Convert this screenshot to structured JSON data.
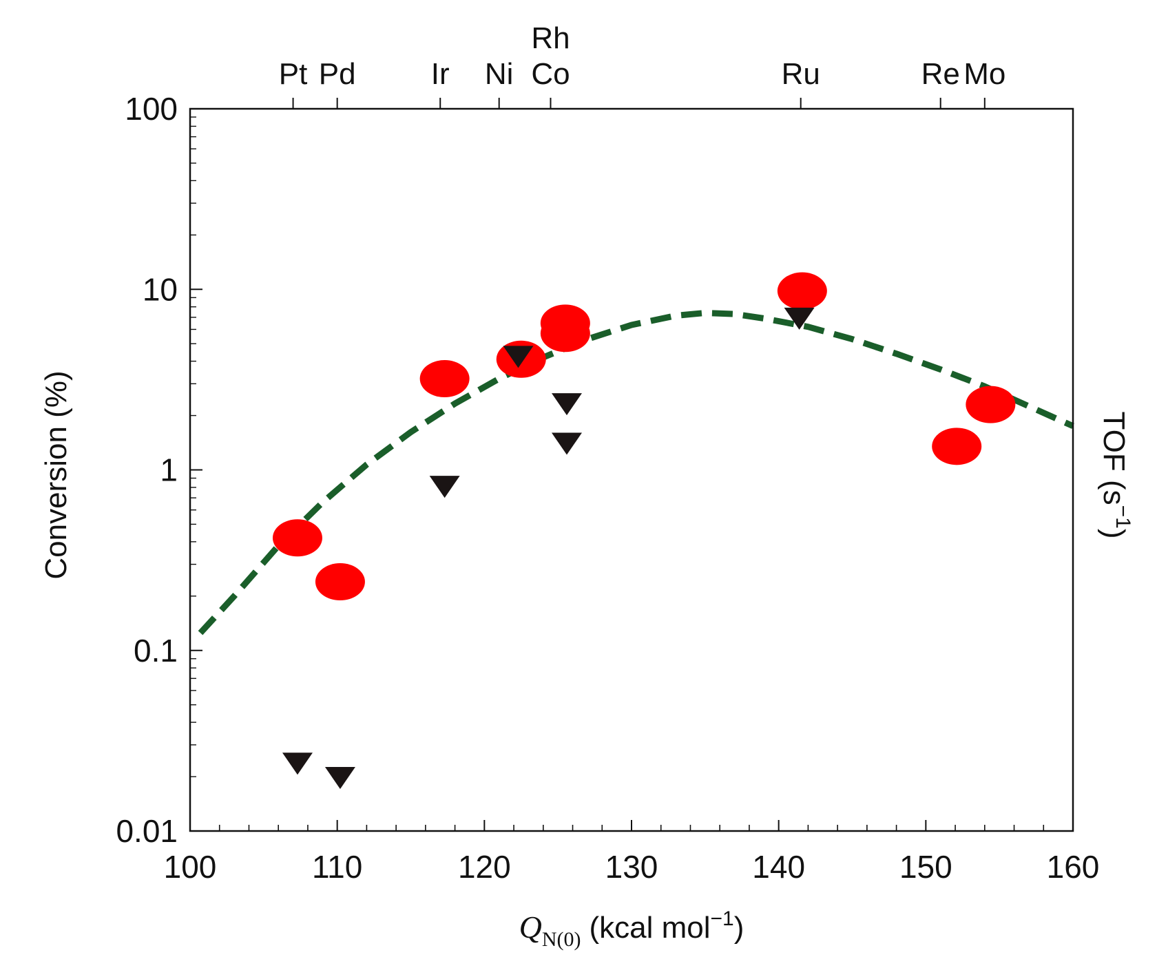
{
  "chart_data": {
    "type": "scatter",
    "xlabel": {
      "symbol": "Q",
      "subscript": "N(0)",
      "unit": "(kcal mol",
      "sup": "−1",
      "close": ")"
    },
    "ylabel": "Conversion (%)",
    "y2label": {
      "text": "TOF (s",
      "sup": "−1",
      "close": ")"
    },
    "xlim": [
      100,
      160
    ],
    "ylim": [
      0.01,
      100
    ],
    "yscale": "log",
    "x_ticks": [
      100,
      110,
      120,
      130,
      140,
      150,
      160
    ],
    "x_tick_labels": [
      "100",
      "110",
      "120",
      "130",
      "140",
      "150",
      "160"
    ],
    "y_ticks": [
      0.01,
      0.1,
      1,
      10,
      100
    ],
    "y_tick_labels": [
      "0.01",
      "0.1",
      "1",
      "10",
      "100"
    ],
    "top_axis": {
      "metals": [
        {
          "label": "Pt",
          "x": 107
        },
        {
          "label": "Pd",
          "x": 110
        },
        {
          "label": "Ir",
          "x": 117
        },
        {
          "label": "Ni",
          "x": 121
        },
        {
          "label": "Co",
          "x": 124.5
        },
        {
          "label": "Rh",
          "x": 124.5
        },
        {
          "label": "Ru",
          "x": 141.5
        },
        {
          "label": "Re",
          "x": 151
        },
        {
          "label": "Mo",
          "x": 154
        }
      ]
    },
    "series": [
      {
        "name": "Conversion",
        "marker": "circle",
        "color": "#ff0000",
        "points": [
          {
            "x": 107.3,
            "y": 0.42
          },
          {
            "x": 110.2,
            "y": 0.24
          },
          {
            "x": 117.3,
            "y": 3.2
          },
          {
            "x": 122.5,
            "y": 4.1
          },
          {
            "x": 125.5,
            "y": 6.5
          },
          {
            "x": 125.5,
            "y": 5.7
          },
          {
            "x": 141.6,
            "y": 9.8
          },
          {
            "x": 152.1,
            "y": 1.35
          },
          {
            "x": 154.4,
            "y": 2.3
          }
        ]
      },
      {
        "name": "TOF",
        "marker": "triangle-down",
        "color": "#1a1414",
        "points": [
          {
            "x": 107.3,
            "y": 0.024
          },
          {
            "x": 110.2,
            "y": 0.02
          },
          {
            "x": 117.3,
            "y": 0.82
          },
          {
            "x": 122.3,
            "y": 4.3
          },
          {
            "x": 125.6,
            "y": 2.35
          },
          {
            "x": 125.6,
            "y": 1.42
          },
          {
            "x": 141.4,
            "y": 7.0
          }
        ]
      },
      {
        "name": "Volcano fit",
        "marker": "dashed-line",
        "color": "#1a5e2a",
        "points": [
          {
            "x": 100.7,
            "y": 0.125
          },
          {
            "x": 103,
            "y": 0.2
          },
          {
            "x": 106,
            "y": 0.38
          },
          {
            "x": 109,
            "y": 0.66
          },
          {
            "x": 112,
            "y": 1.07
          },
          {
            "x": 115,
            "y": 1.62
          },
          {
            "x": 118,
            "y": 2.33
          },
          {
            "x": 121,
            "y": 3.2
          },
          {
            "x": 124,
            "y": 4.2
          },
          {
            "x": 127,
            "y": 5.3
          },
          {
            "x": 130,
            "y": 6.35
          },
          {
            "x": 133,
            "y": 7.15
          },
          {
            "x": 135,
            "y": 7.4
          },
          {
            "x": 137,
            "y": 7.3
          },
          {
            "x": 139,
            "y": 6.9
          },
          {
            "x": 142,
            "y": 6.2
          },
          {
            "x": 145,
            "y": 5.3
          },
          {
            "x": 148,
            "y": 4.4
          },
          {
            "x": 151,
            "y": 3.6
          },
          {
            "x": 154,
            "y": 2.9
          },
          {
            "x": 157,
            "y": 2.25
          },
          {
            "x": 160,
            "y": 1.75
          }
        ]
      }
    ]
  }
}
